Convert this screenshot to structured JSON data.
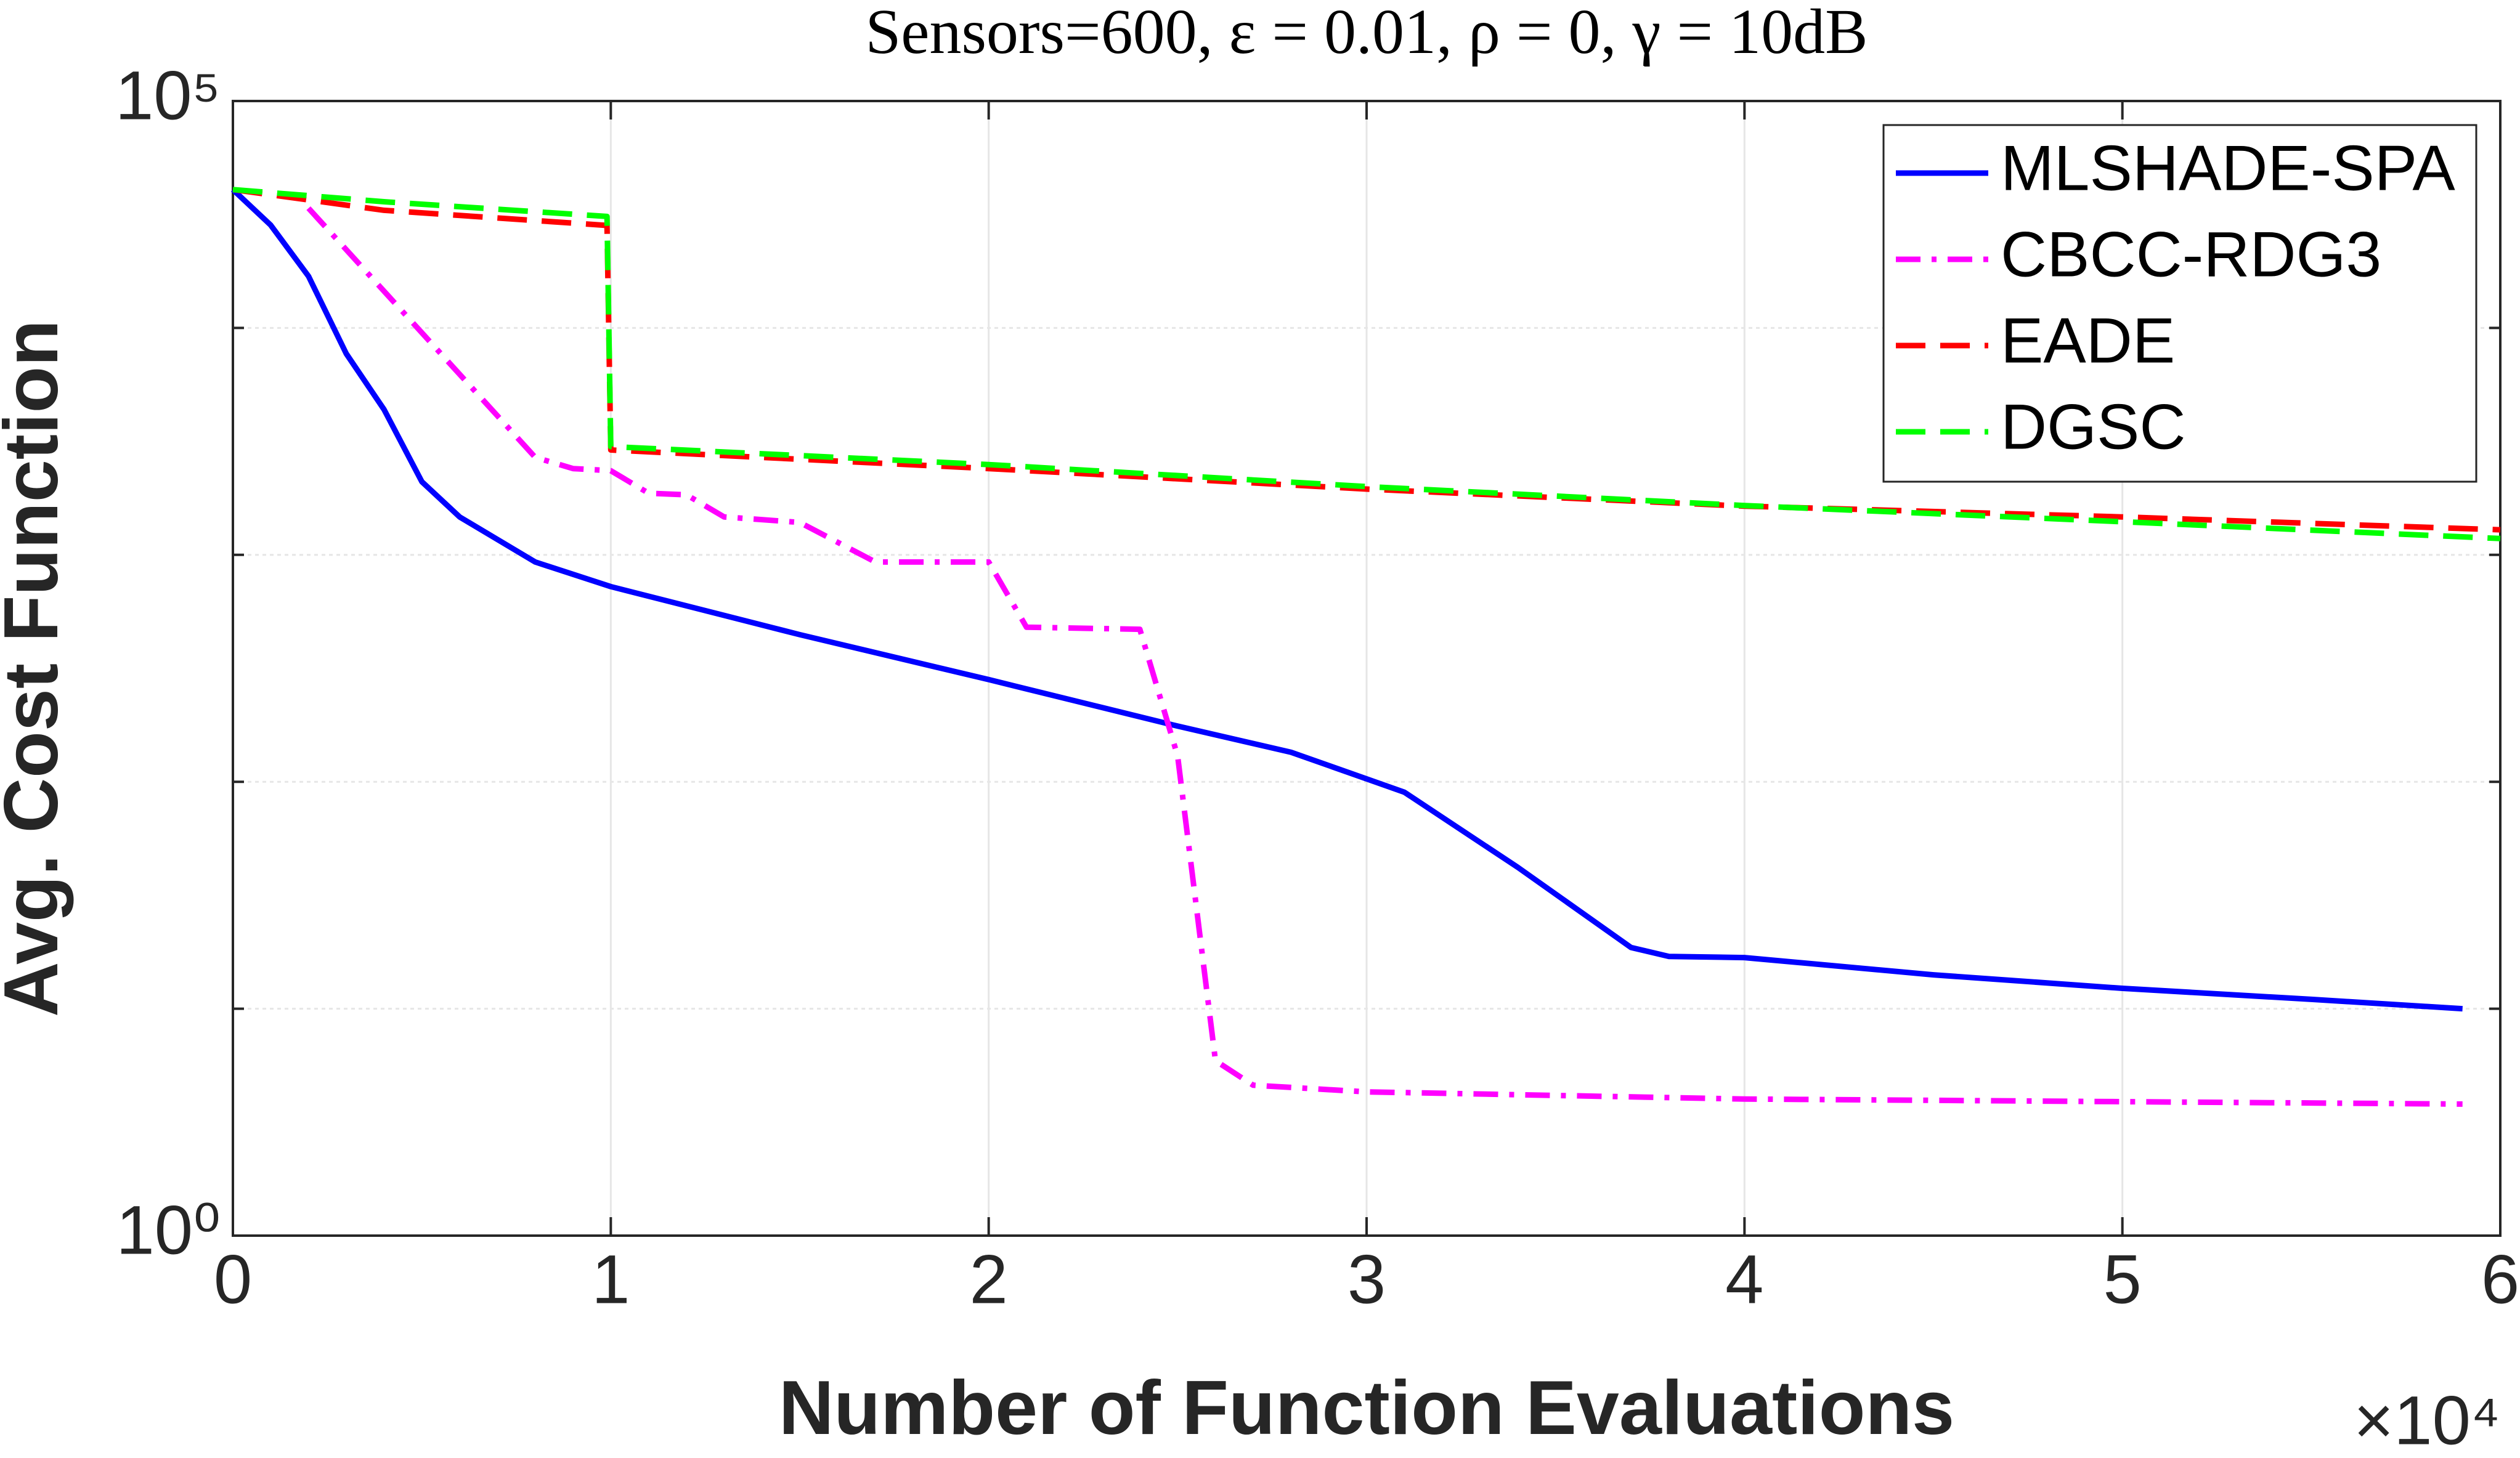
{
  "chart_data": {
    "type": "line",
    "title": "Sensors=600, ε = 0.01, ρ = 0, γ = 10dB",
    "x_label": "Number of Function Evaluations",
    "y_label": "Avg. Cost Function",
    "x_exponent_label": "×10⁴",
    "xlim": [
      0,
      60000
    ],
    "xticks": [
      {
        "value": 0,
        "label": "0"
      },
      {
        "value": 10000,
        "label": "1"
      },
      {
        "value": 20000,
        "label": "2"
      },
      {
        "value": 30000,
        "label": "3"
      },
      {
        "value": 40000,
        "label": "4"
      },
      {
        "value": 50000,
        "label": "5"
      },
      {
        "value": 60000,
        "label": "6"
      }
    ],
    "ylim": [
      1,
      100000
    ],
    "yticks": [
      {
        "value": 1,
        "label": "10⁰"
      },
      {
        "value": 100000,
        "label": "10⁵"
      }
    ],
    "minor_yticks": [
      10,
      100,
      1000,
      10000
    ],
    "y_scale": "log",
    "grid": true,
    "legend": "northeast",
    "series": [
      {
        "name": "MLSHADE-SPA",
        "color": "#0000ff",
        "dash": "solid",
        "x": [
          0,
          1000,
          2000,
          3000,
          4000,
          5000,
          6000,
          8000,
          10000,
          15000,
          20000,
          25000,
          28000,
          31000,
          34000,
          37000,
          38000,
          40000,
          45000,
          50000,
          55000,
          59000
        ],
        "values": [
          40700,
          28400,
          16900,
          7700,
          4370,
          2100,
          1470,
          930,
          725,
          445,
          282,
          176,
          135,
          90,
          42,
          18.6,
          17,
          16.8,
          14.1,
          12.3,
          11,
          10
        ]
      },
      {
        "name": "CBCC-RDG3",
        "color": "#ff00ff",
        "dash": "dashdot",
        "x": [
          2000,
          8000,
          9000,
          10000,
          11000,
          12000,
          13000,
          15000,
          17000,
          20000,
          21000,
          24000,
          25000,
          26000,
          27000,
          30000,
          40000,
          59000
        ],
        "values": [
          33700,
          2690,
          2400,
          2350,
          1870,
          1840,
          1470,
          1390,
          930,
          930,
          480,
          470,
          130,
          5.9,
          4.6,
          4.3,
          4.0,
          3.8
        ]
      },
      {
        "name": "EADE",
        "color": "#ff0000",
        "dash": "dashed",
        "x": [
          0,
          4000,
          9900,
          10000,
          20000,
          30000,
          40000,
          50000,
          60000
        ],
        "values": [
          40700,
          33000,
          28300,
          2900,
          2400,
          1950,
          1640,
          1470,
          1290
        ]
      },
      {
        "name": "DGSC",
        "color": "#00ff00",
        "dash": "dashed",
        "x": [
          0,
          4000,
          9900,
          10000,
          20000,
          30000,
          40000,
          50000,
          60000
        ],
        "values": [
          40700,
          36000,
          31000,
          3000,
          2500,
          2000,
          1650,
          1400,
          1180
        ]
      }
    ]
  }
}
